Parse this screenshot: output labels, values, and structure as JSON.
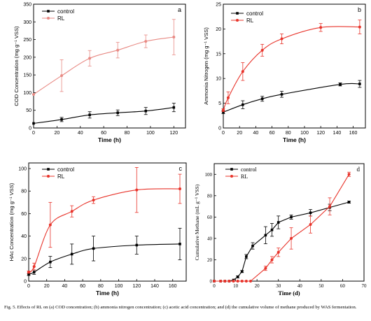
{
  "caption": "Fig. 5. Effects of RL on (a) COD concentration; (b) ammonia nitrogen concentration; (c) acetic acid concentration; and (d) the cumulative volume of methane produced by WAS fermentation.",
  "colors": {
    "control": "#000000",
    "RL": "#e8332a",
    "RL_light": "#e88a84"
  },
  "chart_data": [
    {
      "type": "line",
      "panel_label": "a",
      "xlabel": "Time (h)",
      "ylabel": "COD Concentration (mg g⁻¹ VSS)",
      "xlim": [
        0,
        130
      ],
      "ylim": [
        0,
        350
      ],
      "xticks": [
        0,
        20,
        40,
        60,
        80,
        100,
        120
      ],
      "yticks": [
        0,
        50,
        100,
        150,
        200,
        250,
        300,
        350
      ],
      "legend": "top-left",
      "grid": false,
      "series": [
        {
          "name": "control",
          "marker": "square",
          "x": [
            0,
            24,
            48,
            72,
            96,
            120
          ],
          "y": [
            13,
            24,
            37,
            43,
            48,
            58
          ],
          "err": [
            0,
            6,
            9,
            8,
            10,
            12
          ]
        },
        {
          "name": "RL",
          "marker": "circle",
          "x": [
            0,
            24,
            48,
            72,
            96,
            120
          ],
          "y": [
            95,
            148,
            197,
            220,
            245,
            257
          ],
          "err": [
            0,
            45,
            22,
            22,
            18,
            50
          ]
        }
      ]
    },
    {
      "type": "line",
      "panel_label": "b",
      "xlabel": "Time (h)",
      "ylabel": "Ammonia Nitrogen (mg g⁻¹ VSS)",
      "xlim": [
        0,
        175
      ],
      "ylim": [
        0,
        25
      ],
      "xticks": [
        0,
        20,
        40,
        60,
        80,
        100,
        120,
        140,
        160
      ],
      "yticks": [
        0,
        5,
        10,
        15,
        20,
        25
      ],
      "legend": "top-left",
      "grid": false,
      "series": [
        {
          "name": "control",
          "marker": "square",
          "x": [
            0,
            24,
            48,
            72,
            144,
            168
          ],
          "y": [
            3.2,
            4.7,
            5.9,
            6.8,
            8.8,
            8.9
          ],
          "err": [
            0.3,
            0.8,
            0.5,
            0.6,
            0.3,
            0.7
          ]
        },
        {
          "name": "RL",
          "marker": "circle",
          "x": [
            0,
            6,
            24,
            48,
            72,
            120,
            168
          ],
          "y": [
            3.6,
            6.1,
            11.4,
            15.7,
            18,
            20.3,
            20.4
          ],
          "err": [
            0.3,
            1.2,
            1.8,
            1.2,
            1.0,
            0.8,
            1.4
          ]
        }
      ]
    },
    {
      "type": "line",
      "panel_label": "c",
      "xlabel": "Time (h)",
      "ylabel": "HAc Concentration (mg g⁻¹ VSS)",
      "xlim": [
        0,
        175
      ],
      "ylim": [
        0,
        105
      ],
      "xticks": [
        0,
        20,
        40,
        60,
        80,
        100,
        120,
        140,
        160
      ],
      "yticks": [
        0,
        20,
        40,
        60,
        80,
        100
      ],
      "legend": "top-left",
      "grid": false,
      "series": [
        {
          "name": "control",
          "marker": "square",
          "x": [
            0,
            6,
            24,
            48,
            72,
            120,
            168
          ],
          "y": [
            6,
            8,
            17,
            24,
            29,
            32,
            33
          ],
          "err": [
            1,
            2,
            5,
            9,
            11,
            8,
            14
          ]
        },
        {
          "name": "RL",
          "marker": "circle",
          "x": [
            0,
            6,
            24,
            48,
            72,
            120,
            168
          ],
          "y": [
            8,
            13,
            50,
            62,
            72,
            81,
            82
          ],
          "err": [
            1,
            3,
            20,
            5,
            3,
            20,
            13
          ]
        }
      ]
    },
    {
      "type": "line",
      "panel_label": "d",
      "xlabel": "Time (d)",
      "ylabel": "Cumulative Methane (mL g⁻¹ VSS)",
      "xlim": [
        0,
        70
      ],
      "ylim": [
        0,
        110
      ],
      "xticks": [
        0,
        10,
        20,
        30,
        40,
        50,
        60,
        70
      ],
      "yticks": [
        0,
        20,
        40,
        60,
        80,
        100
      ],
      "legend": "top-left",
      "grid": false,
      "series": [
        {
          "name": "control",
          "marker": "square",
          "x": [
            0,
            3,
            5,
            7,
            9,
            11,
            13,
            15,
            18,
            24,
            27,
            30,
            36,
            45,
            54,
            63
          ],
          "y": [
            0,
            0,
            0,
            0,
            1,
            4,
            9,
            23,
            33,
            43,
            48,
            55,
            60,
            64,
            69,
            74
          ],
          "err": [
            0,
            0,
            0,
            0,
            0,
            1,
            1,
            2,
            3,
            8,
            6,
            6,
            2,
            3,
            3,
            1
          ]
        },
        {
          "name": "RL",
          "marker": "circle",
          "x": [
            0,
            3,
            5,
            7,
            9,
            11,
            13,
            15,
            17,
            24,
            27,
            30,
            36,
            45,
            54,
            63
          ],
          "y": [
            0,
            0,
            0,
            0,
            0,
            0,
            0,
            0,
            0,
            12,
            20,
            27,
            40,
            53,
            70,
            100
          ],
          "err": [
            0,
            0,
            0,
            0,
            0,
            0,
            0,
            0,
            0,
            2,
            3,
            4,
            10,
            8,
            8,
            2
          ]
        }
      ]
    }
  ]
}
